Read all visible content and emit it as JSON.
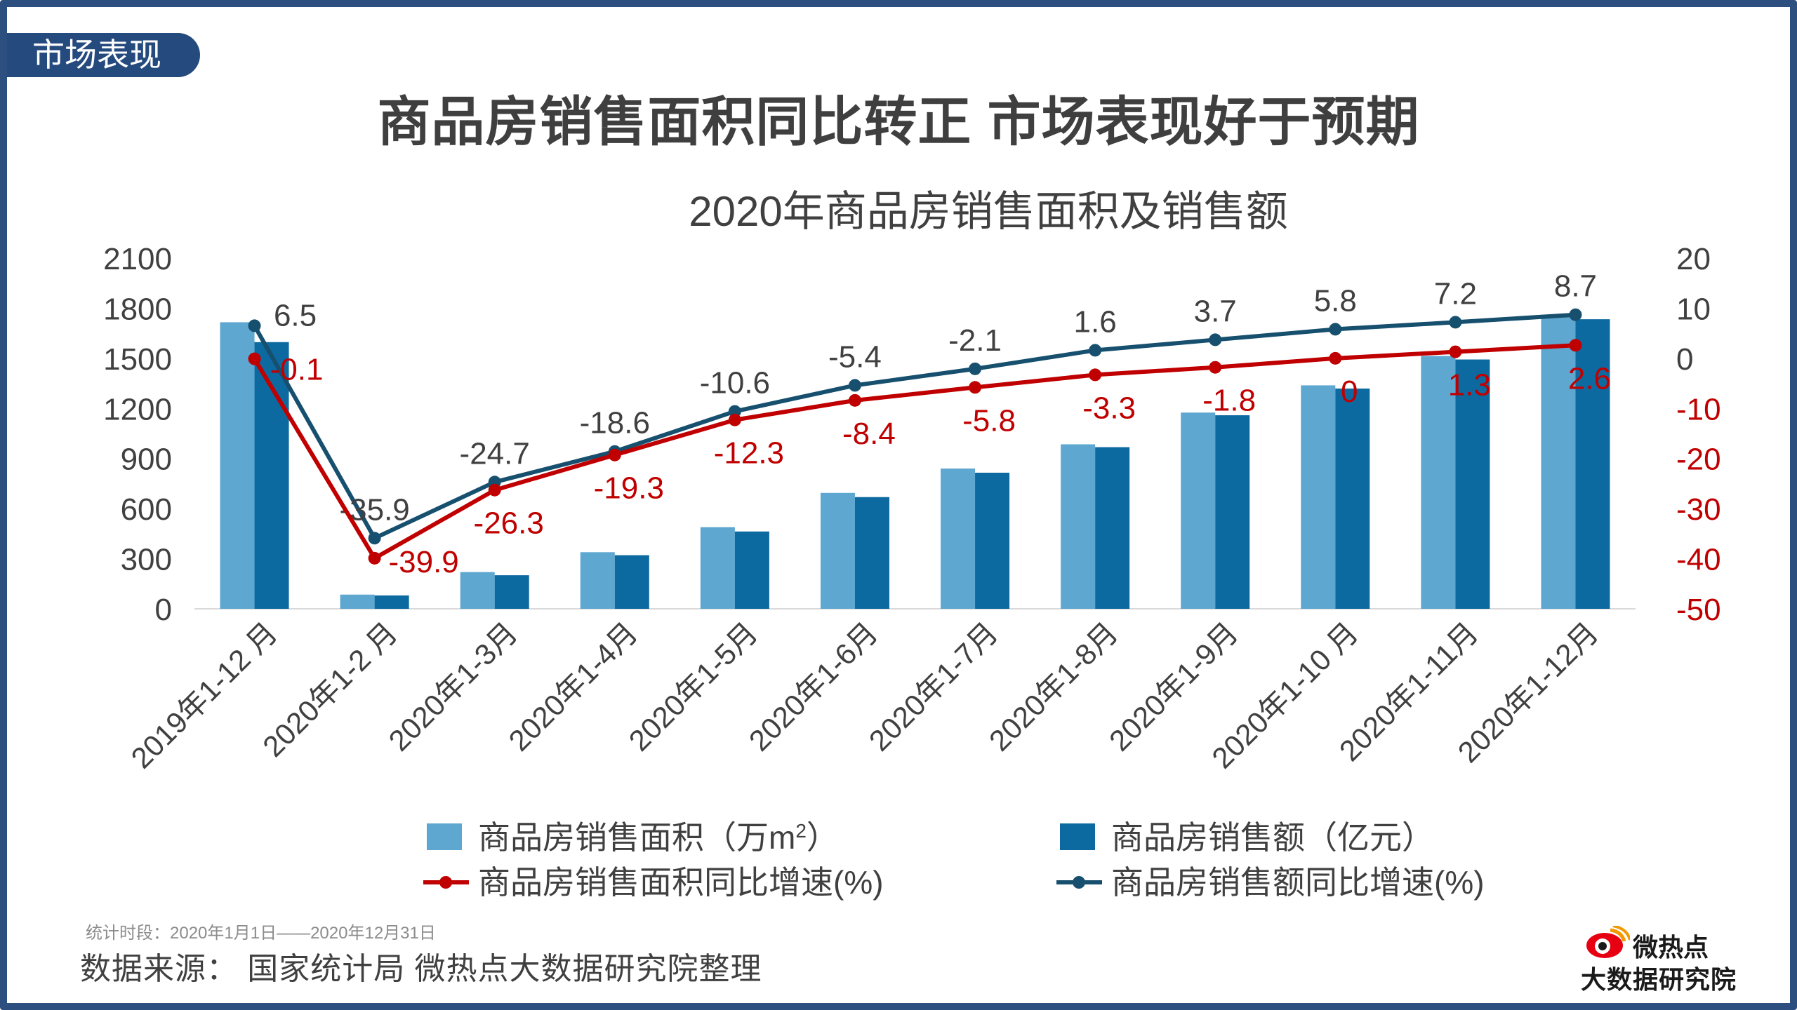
{
  "section_tag": "市场表现",
  "headline": "商品房销售面积同比转正 市场表现好于预期",
  "footer": {
    "period": "统计时段：2020年1月1日——2020年12月31日",
    "source": "数据来源：  国家统计局  微热点大数据研究院整理"
  },
  "logo": {
    "top": "微热点",
    "bottom": "大数据研究院"
  },
  "colors": {
    "area_bar": "#5ea7d1",
    "amount_bar": "#0d6aa0",
    "area_line": "#c00000",
    "amount_line": "#17506e",
    "axis_text": "#404040",
    "right_axis_text": "#c00000",
    "tag_bg": "#254a7d"
  },
  "chart_data": {
    "type": "bar",
    "title": "2020年商品房销售面积及销售额",
    "categories": [
      "2019年1-12 月",
      "2020年1-2 月",
      "2020年1-3月",
      "2020年1-4月",
      "2020年1-5月",
      "2020年1-6月",
      "2020年1-7月",
      "2020年1-8月",
      "2020年1-9月",
      "2020年1-10 月",
      "2020年1-11月",
      "2020年1-12月"
    ],
    "y_left": {
      "ylim": [
        0,
        2100
      ],
      "ticks": [
        "0",
        "300",
        "600",
        "900",
        "1200",
        "1500",
        "1800",
        "2100"
      ]
    },
    "y_right": {
      "ylim": [
        -50,
        20
      ],
      "ticks": [
        "-50",
        "-40",
        "-30",
        "-20",
        "-10",
        "0",
        "10",
        "20"
      ]
    },
    "series": [
      {
        "name": "商品房销售面积（万m²）",
        "kind": "bar",
        "axis": "left",
        "values": [
          1716,
          85,
          220,
          339,
          489,
          694,
          840,
          985,
          1175,
          1338,
          1514,
          1761
        ]
      },
      {
        "name": "商品房销售额（亿元）",
        "kind": "bar",
        "axis": "left",
        "values": [
          1597,
          80,
          201,
          321,
          463,
          669,
          815,
          968,
          1159,
          1319,
          1493,
          1734
        ]
      },
      {
        "name": "商品房销售面积同比增速(%)",
        "kind": "line",
        "axis": "right",
        "values": [
          -0.1,
          -39.9,
          -26.3,
          -19.3,
          -12.3,
          -8.4,
          -5.8,
          -3.3,
          -1.8,
          0,
          1.3,
          2.6
        ],
        "labels": [
          "-0.1",
          "-39.9",
          "-26.3",
          "-19.3",
          "-12.3",
          "-8.4",
          "-5.8",
          "-3.3",
          "-1.8",
          "0",
          "1.3",
          "2.6"
        ]
      },
      {
        "name": "商品房销售额同比增速(%)",
        "kind": "line",
        "axis": "right",
        "values": [
          6.5,
          -35.9,
          -24.7,
          -18.6,
          -10.6,
          -5.4,
          -2.1,
          1.6,
          3.7,
          5.8,
          7.2,
          8.7
        ],
        "labels": [
          "6.5",
          "-35.9",
          "-24.7",
          "-18.6",
          "-10.6",
          "-5.4",
          "-2.1",
          "1.6",
          "3.7",
          "5.8",
          "7.2",
          "8.7"
        ]
      }
    ],
    "legend": [
      {
        "label": "商品房销售面积（万m",
        "sup": "2",
        "close": "）",
        "type": "bar",
        "series": 0
      },
      {
        "label": "商品房销售额（亿元）",
        "type": "bar",
        "series": 1
      },
      {
        "label": "商品房销售面积同比增速(%)",
        "type": "line",
        "series": 2
      },
      {
        "label": "商品房销售额同比增速(%)",
        "type": "line",
        "series": 3
      }
    ],
    "legend_position": "bottom"
  }
}
